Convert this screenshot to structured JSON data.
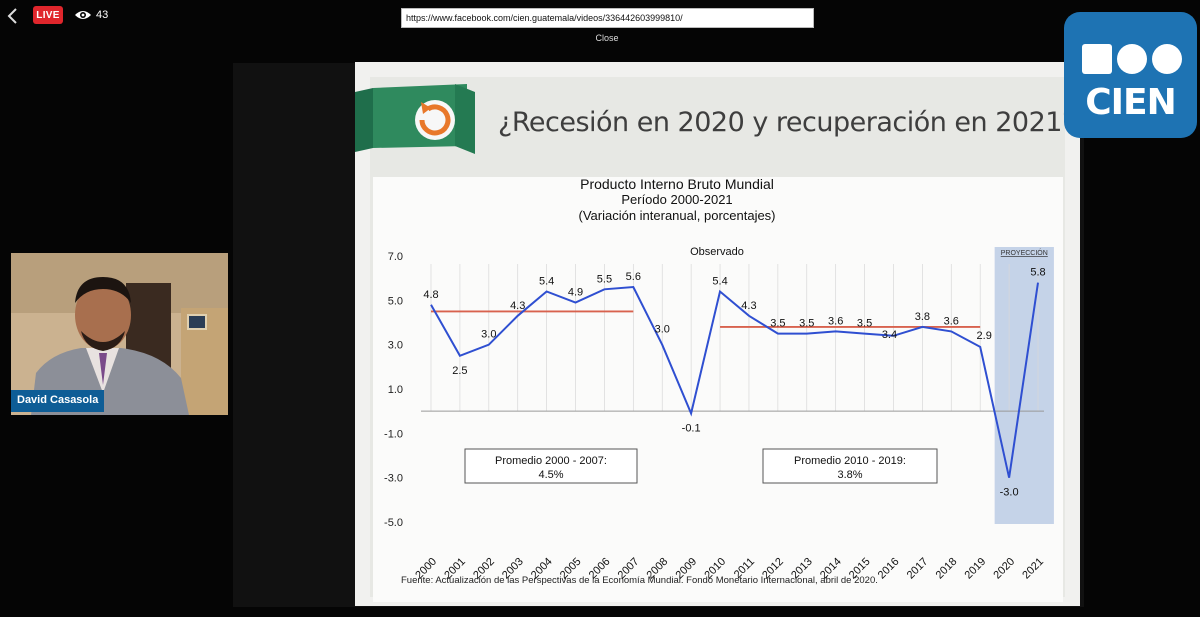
{
  "top_bar": {
    "live_label": "LIVE",
    "viewer_count": "43",
    "url": "https://www.facebook.com/cien.guatemala/videos/336442603999810/",
    "close_label": "Close"
  },
  "logo": {
    "text": "CIEN"
  },
  "webcam": {
    "name": "David Casasola"
  },
  "slide": {
    "title": "¿Recesión en 2020 y recuperación en 2021?"
  },
  "chart_data": {
    "type": "line",
    "title": "Producto Interno Bruto Mundial",
    "subtitle_1": "Período 2000-2021",
    "subtitle_2": "(Variación interanual, porcentajes)",
    "observed_label": "Observado",
    "projection_label": "PROYECCIÓN",
    "source": "Fuente: Actualización de las Perspectivas de la Economía Mundial. Fondo Monetario Internacional, abril de 2020.",
    "x": [
      "2000",
      "2001",
      "2002",
      "2003",
      "2004",
      "2005",
      "2006",
      "2007",
      "2008",
      "2009",
      "2010",
      "2011",
      "2012",
      "2013",
      "2014",
      "2015",
      "2016",
      "2017",
      "2018",
      "2019",
      "2020",
      "2021"
    ],
    "values": [
      4.8,
      2.5,
      3.0,
      4.3,
      5.4,
      4.9,
      5.5,
      5.6,
      3.0,
      -0.1,
      5.4,
      4.3,
      3.5,
      3.5,
      3.6,
      3.5,
      3.4,
      3.8,
      3.6,
      2.9,
      -3.0,
      5.8
    ],
    "labels": [
      "4.8",
      "2.5",
      "3.0",
      "4.3",
      "5.4",
      "4.9",
      "5.5",
      "5.6",
      "3.0",
      "-0.1",
      "5.4",
      "4.3",
      "3.5",
      "3.5",
      "3.6",
      "3.5",
      "3.4",
      "3.8",
      "3.6",
      "2.9",
      "-3.0",
      "5.8"
    ],
    "y_ticks": [
      "7.0",
      "5.0",
      "3.0",
      "1.0",
      "-1.0",
      "-3.0",
      "-5.0"
    ],
    "ylim": [
      -5,
      7
    ],
    "averages": [
      {
        "label": "Promedio 2000 - 2007:",
        "value_label": "4.5%",
        "value": 4.5,
        "from": "2000",
        "to": "2007"
      },
      {
        "label": "Promedio 2010 - 2019:",
        "value_label": "3.8%",
        "value": 3.8,
        "from": "2010",
        "to": "2019"
      }
    ],
    "colors": {
      "line": "#2f4fd1",
      "average": "#d8624e",
      "projection": "#c5d3e8"
    }
  }
}
